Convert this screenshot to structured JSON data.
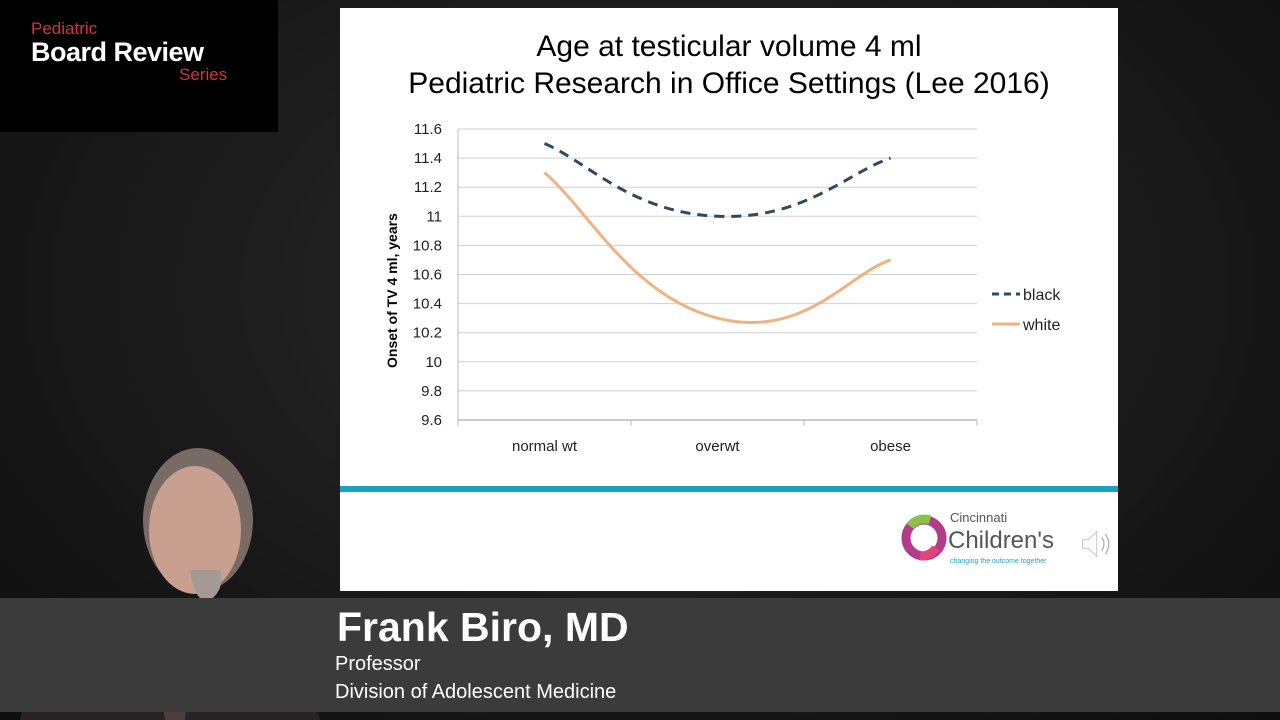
{
  "branding": {
    "line1": "Pediatric",
    "line2": "Board Review",
    "line3": "Series"
  },
  "slide": {
    "title_line1": "Age at testicular volume 4 ml",
    "title_line2": "Pediatric Research in Office Settings (Lee 2016)",
    "logo": {
      "line1": "Cincinnati",
      "line2": "Children's",
      "tagline": "changing the outcome together"
    },
    "accent_color": "#1aa3be"
  },
  "chart_data": {
    "type": "line",
    "title": "",
    "xlabel": "",
    "ylabel": "Onset of TV 4 ml, years",
    "categories": [
      "normal wt",
      "overwt",
      "obese"
    ],
    "ylim": [
      9.6,
      11.6
    ],
    "yticks": [
      "9.6",
      "9.8",
      "10",
      "10.2",
      "10.4",
      "10.6",
      "10.8",
      "11",
      "11.2",
      "11.4",
      "11.6"
    ],
    "grid": true,
    "smoothed": true,
    "legend_position": "right",
    "series": [
      {
        "name": "black",
        "values": [
          11.5,
          11.0,
          11.4
        ],
        "color": "#2e4a63",
        "style": "dashed"
      },
      {
        "name": "white",
        "values": [
          11.3,
          10.3,
          10.7
        ],
        "color": "#f0b27f",
        "style": "solid"
      }
    ]
  },
  "lower_third": {
    "name": "Frank Biro, MD",
    "title": "Professor",
    "department": "Division of Adolescent Medicine"
  }
}
